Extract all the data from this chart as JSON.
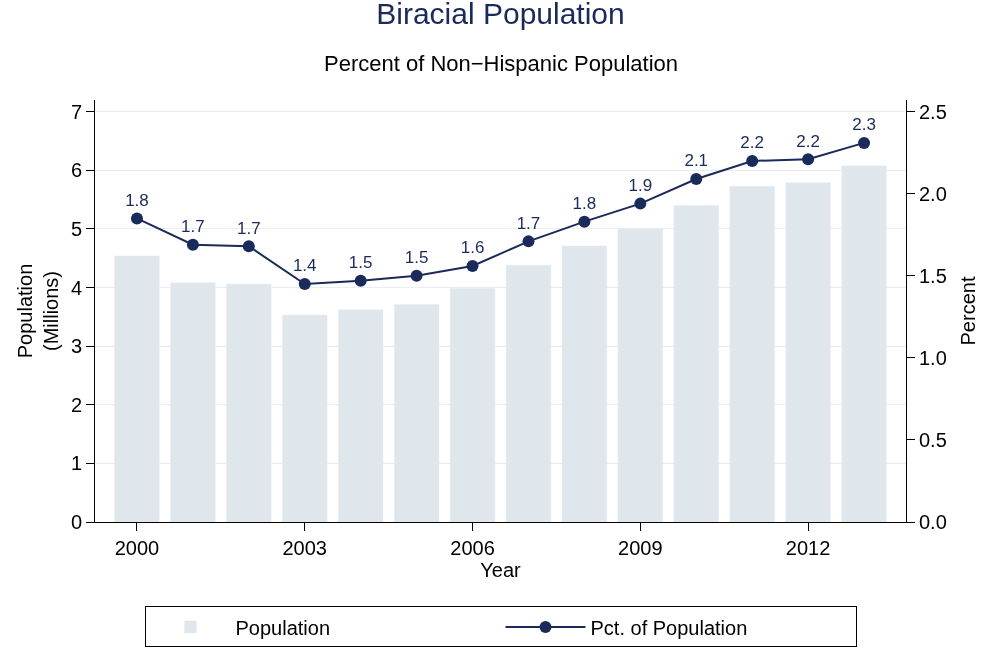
{
  "chart_data": {
    "type": "bar",
    "title": "Biracial Population",
    "subtitle": "Percent of Non−Hispanic Population",
    "xlabel": "Year",
    "ylabel": "Population\n(Millions)",
    "y2label": "Percent",
    "x": [
      2000,
      2001,
      2002,
      2003,
      2004,
      2005,
      2006,
      2007,
      2008,
      2009,
      2010,
      2011,
      2012,
      2013
    ],
    "series": [
      {
        "name": "Population",
        "color": "#dfe7ed",
        "values": [
          4.54,
          4.08,
          4.06,
          3.53,
          3.62,
          3.71,
          3.99,
          4.38,
          4.71,
          5.01,
          5.4,
          5.73,
          5.79,
          6.08
        ]
      },
      {
        "name": "Pct. of Population",
        "type": "line",
        "axis": "y2",
        "color": "#1a2a5a",
        "marker": "circle",
        "line_style": "solid",
        "values": [
          1.85,
          1.69,
          1.68,
          1.45,
          1.47,
          1.5,
          1.56,
          1.71,
          1.83,
          1.94,
          2.09,
          2.2,
          2.21,
          2.31
        ],
        "value_labels": [
          "1.8",
          "1.7",
          "1.7",
          "1.4",
          "1.5",
          "1.5",
          "1.6",
          "1.7",
          "1.8",
          "1.9",
          "2.1",
          "2.2",
          "2.2",
          "2.3"
        ]
      }
    ],
    "xlim": [
      1999.25,
      2013.75
    ],
    "xticks": [
      2000,
      2003,
      2006,
      2009,
      2012
    ],
    "ylim": [
      0,
      7.2
    ],
    "yticks": [
      0,
      1,
      2,
      3,
      4,
      5,
      6,
      7
    ],
    "y2lim": [
      0,
      2.5714
    ],
    "y2ticks": [
      {
        "value": 0,
        "label": "0.0"
      },
      {
        "value": 0.5,
        "label": "0.5"
      },
      {
        "value": 1,
        "label": "1.0"
      },
      {
        "value": 1.5,
        "label": "1.5"
      },
      {
        "value": 2,
        "label": "2.0"
      },
      {
        "value": 2.5,
        "label": "2.5"
      }
    ],
    "grid": "y",
    "legend": "bottom"
  }
}
